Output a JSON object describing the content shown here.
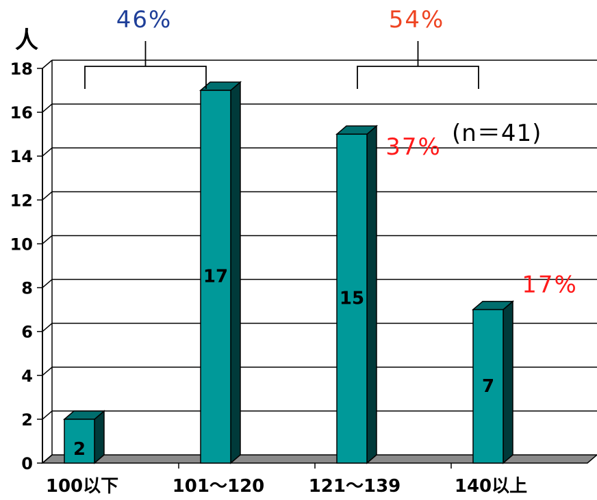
{
  "chart_data": {
    "type": "bar",
    "categories": [
      "100以下",
      "101～120",
      "121～139",
      "140以上"
    ],
    "values": [
      2,
      17,
      15,
      7
    ],
    "ylabel": "人",
    "ylim": [
      0,
      18
    ],
    "yticks": [
      0,
      2,
      4,
      6,
      8,
      10,
      12,
      14,
      16,
      18
    ],
    "grid": true,
    "note": "(n＝41)",
    "group_labels": [
      {
        "text": "46%",
        "categories": [
          "100以下",
          "101～120"
        ],
        "color": "#1f3f99"
      },
      {
        "text": "54%",
        "categories": [
          "121～139",
          "140以上"
        ],
        "color": "#ee4422"
      }
    ],
    "annotations": [
      {
        "text": "37%",
        "category": "121～139",
        "color": "#ff1a1a"
      },
      {
        "text": "17%",
        "category": "140以上",
        "color": "#ff1a1a"
      }
    ],
    "bar_color": "#009999"
  }
}
